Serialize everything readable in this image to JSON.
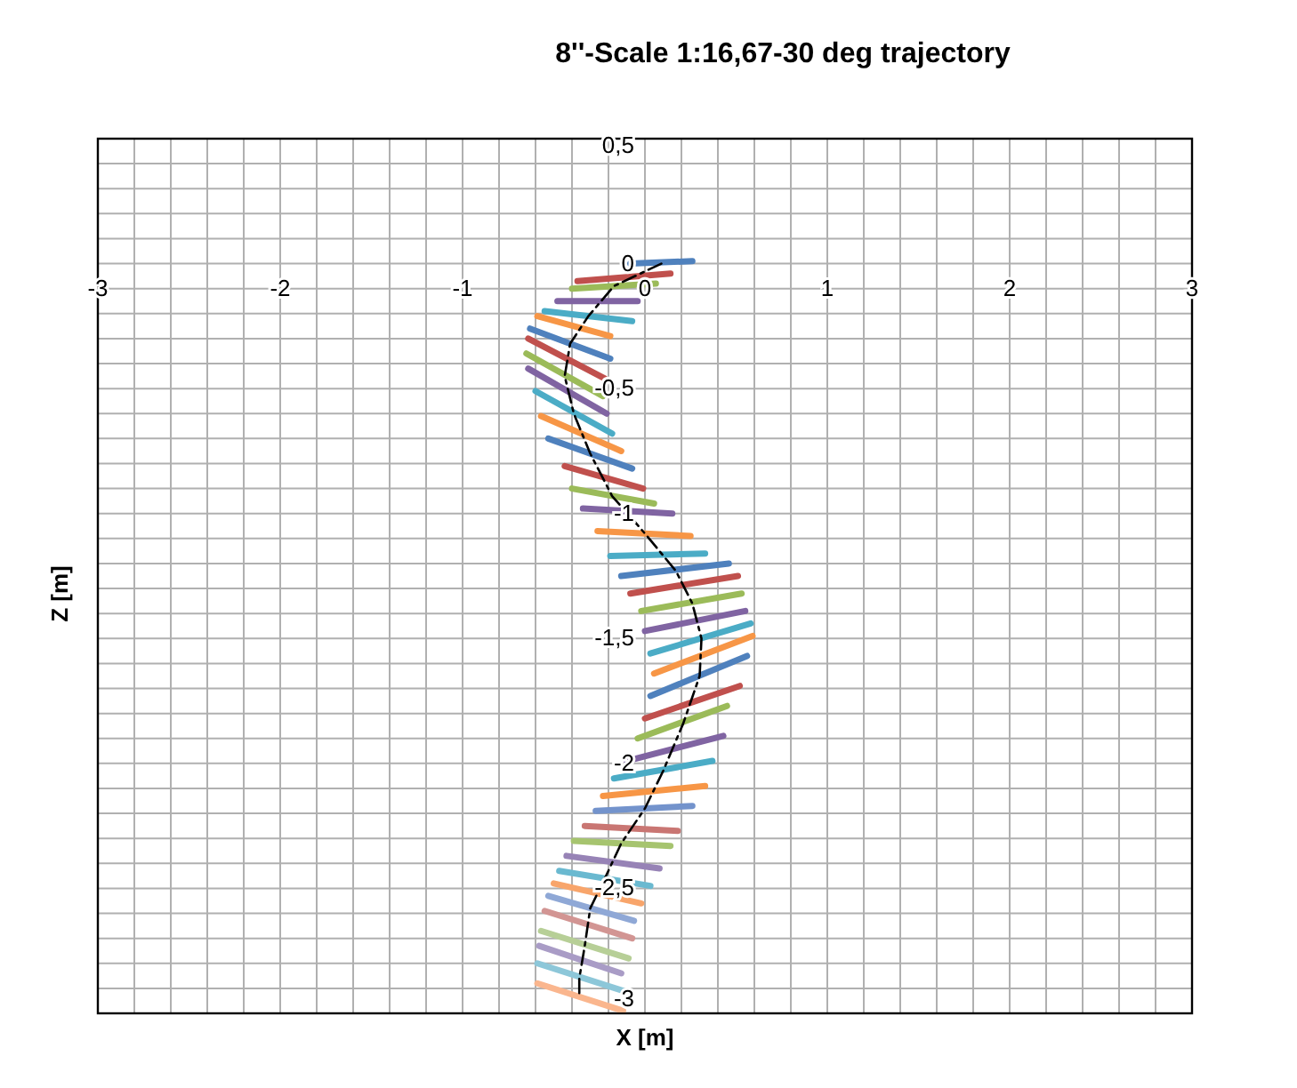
{
  "chart_data": {
    "type": "line",
    "title": "8''-Scale 1:16,67-30 deg trajectory",
    "xlabel": "X [m]",
    "ylabel": "Z [m]",
    "grid": true,
    "xlim": [
      -3,
      3
    ],
    "ylim": [
      -3,
      0.5
    ],
    "xticks": [
      -3,
      {
        "value": -2.8,
        "label": null
      },
      {
        "value": -2.6,
        "label": null
      },
      {
        "value": -2.4,
        "label": null
      },
      {
        "value": -2.2,
        "label": null
      },
      -2,
      {
        "value": -1.8,
        "label": null
      },
      {
        "value": -1.6,
        "label": null
      },
      {
        "value": -1.4,
        "label": null
      },
      {
        "value": -1.2,
        "label": null
      },
      -1,
      {
        "value": -0.8,
        "label": null
      },
      {
        "value": -0.6,
        "label": null
      },
      {
        "value": -0.4,
        "label": null
      },
      {
        "value": -0.2,
        "label": null
      },
      0,
      {
        "value": 0.2,
        "label": null
      },
      {
        "value": 0.4,
        "label": null
      },
      {
        "value": 0.6,
        "label": null
      },
      {
        "value": 0.8,
        "label": null
      },
      1,
      {
        "value": 1.2,
        "label": null
      },
      {
        "value": 1.4,
        "label": null
      },
      {
        "value": 1.6,
        "label": null
      },
      {
        "value": 1.8,
        "label": null
      },
      2,
      {
        "value": 2.2,
        "label": null
      },
      {
        "value": 2.4,
        "label": null
      },
      {
        "value": 2.6,
        "label": null
      },
      {
        "value": 2.8,
        "label": null
      },
      3
    ],
    "yticks": [
      {
        "value": 0.5,
        "label": "0,5"
      },
      {
        "value": 0.4,
        "label": null
      },
      {
        "value": 0.3,
        "label": null
      },
      {
        "value": 0.2,
        "label": null
      },
      {
        "value": 0.1,
        "label": null
      },
      0,
      {
        "value": -0.1,
        "label": null
      },
      {
        "value": -0.2,
        "label": null
      },
      {
        "value": -0.3,
        "label": null
      },
      {
        "value": -0.4,
        "label": null
      },
      {
        "value": -0.5,
        "label": "-0,5"
      },
      {
        "value": -0.6,
        "label": null
      },
      {
        "value": -0.7,
        "label": null
      },
      {
        "value": -0.8,
        "label": null
      },
      {
        "value": -0.9,
        "label": null
      },
      -1,
      {
        "value": -1.1,
        "label": null
      },
      {
        "value": -1.2,
        "label": null
      },
      {
        "value": -1.3,
        "label": null
      },
      {
        "value": -1.4,
        "label": null
      },
      {
        "value": -1.5,
        "label": "-1,5"
      },
      {
        "value": -1.6,
        "label": null
      },
      {
        "value": -1.7,
        "label": null
      },
      {
        "value": -1.8,
        "label": null
      },
      {
        "value": -1.9,
        "label": null
      },
      -2,
      {
        "value": -2.1,
        "label": null
      },
      {
        "value": -2.2,
        "label": null
      },
      {
        "value": -2.3,
        "label": null
      },
      {
        "value": -2.4,
        "label": null
      },
      {
        "value": -2.5,
        "label": "-2,5"
      },
      {
        "value": -2.6,
        "label": null
      },
      {
        "value": -2.7,
        "label": null
      },
      {
        "value": -2.8,
        "label": null
      },
      {
        "value": -2.9,
        "label": null
      },
      -3
    ],
    "series": [
      {
        "color": "#4f81bd",
        "x": [
          -0.08,
          0.26
        ],
        "values": [
          0.0,
          0.01
        ]
      },
      {
        "color": "#c0504d",
        "x": [
          -0.37,
          0.14
        ],
        "values": [
          -0.07,
          -0.04
        ]
      },
      {
        "color": "#9bbb59",
        "x": [
          -0.4,
          0.06
        ],
        "values": [
          -0.1,
          -0.08
        ]
      },
      {
        "color": "#8064a2",
        "x": [
          -0.48,
          -0.04
        ],
        "values": [
          -0.15,
          -0.15
        ]
      },
      {
        "color": "#4bacc6",
        "x": [
          -0.55,
          -0.07
        ],
        "values": [
          -0.19,
          -0.23
        ]
      },
      {
        "color": "#f79646",
        "x": [
          -0.59,
          -0.19
        ],
        "values": [
          -0.21,
          -0.29
        ]
      },
      {
        "color": "#4f81bd",
        "x": [
          -0.63,
          -0.19
        ],
        "values": [
          -0.26,
          -0.38
        ]
      },
      {
        "color": "#c0504d",
        "x": [
          -0.64,
          -0.22
        ],
        "values": [
          -0.3,
          -0.46
        ]
      },
      {
        "color": "#9bbb59",
        "x": [
          -0.65,
          -0.23
        ],
        "values": [
          -0.36,
          -0.53
        ]
      },
      {
        "color": "#8064a2",
        "x": [
          -0.64,
          -0.21
        ],
        "values": [
          -0.42,
          -0.6
        ]
      },
      {
        "color": "#4bacc6",
        "x": [
          -0.6,
          -0.18
        ],
        "values": [
          -0.51,
          -0.68
        ]
      },
      {
        "color": "#f79646",
        "x": [
          -0.57,
          -0.13
        ],
        "values": [
          -0.61,
          -0.75
        ]
      },
      {
        "color": "#4f81bd",
        "x": [
          -0.53,
          -0.07
        ],
        "values": [
          -0.7,
          -0.82
        ]
      },
      {
        "color": "#c0504d",
        "x": [
          -0.44,
          -0.01
        ],
        "values": [
          -0.81,
          -0.9
        ]
      },
      {
        "color": "#9bbb59",
        "x": [
          -0.4,
          0.05
        ],
        "values": [
          -0.9,
          -0.96
        ]
      },
      {
        "color": "#8064a2",
        "x": [
          -0.34,
          0.15
        ],
        "values": [
          -0.98,
          -1.0
        ]
      },
      {
        "color": "#f79646",
        "x": [
          -0.26,
          0.25
        ],
        "values": [
          -1.07,
          -1.09
        ]
      },
      {
        "color": "#4bacc6",
        "x": [
          -0.19,
          0.33
        ],
        "values": [
          -1.17,
          -1.16
        ]
      },
      {
        "color": "#4f81bd",
        "x": [
          -0.13,
          0.46
        ],
        "values": [
          -1.25,
          -1.2
        ]
      },
      {
        "color": "#c0504d",
        "x": [
          -0.08,
          0.51
        ],
        "values": [
          -1.32,
          -1.25
        ]
      },
      {
        "color": "#9bbb59",
        "x": [
          -0.02,
          0.53
        ],
        "values": [
          -1.39,
          -1.32
        ]
      },
      {
        "color": "#8064a2",
        "x": [
          0.0,
          0.55
        ],
        "values": [
          -1.47,
          -1.39
        ]
      },
      {
        "color": "#4bacc6",
        "x": [
          0.03,
          0.58
        ],
        "values": [
          -1.56,
          -1.44
        ]
      },
      {
        "color": "#f79646",
        "x": [
          0.05,
          0.59
        ],
        "values": [
          -1.64,
          -1.49
        ]
      },
      {
        "color": "#4f81bd",
        "x": [
          0.03,
          0.56
        ],
        "values": [
          -1.73,
          -1.57
        ]
      },
      {
        "color": "#c0504d",
        "x": [
          0.0,
          0.52
        ],
        "values": [
          -1.82,
          -1.69
        ]
      },
      {
        "color": "#9bbb59",
        "x": [
          -0.04,
          0.45
        ],
        "values": [
          -1.9,
          -1.77
        ]
      },
      {
        "color": "#8064a2",
        "x": [
          -0.1,
          0.43
        ],
        "values": [
          -1.99,
          -1.89
        ]
      },
      {
        "color": "#4bacc6",
        "x": [
          -0.17,
          0.37
        ],
        "values": [
          -2.06,
          -1.99
        ]
      },
      {
        "color": "#f79646",
        "x": [
          -0.23,
          0.33
        ],
        "values": [
          -2.13,
          -2.09
        ]
      },
      {
        "color": "#7393cc",
        "x": [
          -0.27,
          0.26
        ],
        "values": [
          -2.19,
          -2.17
        ]
      },
      {
        "color": "#c97673",
        "x": [
          -0.33,
          0.18
        ],
        "values": [
          -2.25,
          -2.27
        ]
      },
      {
        "color": "#a6c46f",
        "x": [
          -0.39,
          0.14
        ],
        "values": [
          -2.31,
          -2.33
        ]
      },
      {
        "color": "#9783b6",
        "x": [
          -0.43,
          0.08
        ],
        "values": [
          -2.37,
          -2.42
        ]
      },
      {
        "color": "#6ab9d0",
        "x": [
          -0.47,
          0.03
        ],
        "values": [
          -2.43,
          -2.49
        ]
      },
      {
        "color": "#f8a56b",
        "x": [
          -0.5,
          -0.02
        ],
        "values": [
          -2.48,
          -2.56
        ]
      },
      {
        "color": "#8fa8d6",
        "x": [
          -0.53,
          -0.06
        ],
        "values": [
          -2.53,
          -2.63
        ]
      },
      {
        "color": "#d29593",
        "x": [
          -0.55,
          -0.07
        ],
        "values": [
          -2.59,
          -2.7
        ]
      },
      {
        "color": "#b7cf97",
        "x": [
          -0.57,
          -0.09
        ],
        "values": [
          -2.67,
          -2.78
        ]
      },
      {
        "color": "#a99cc6",
        "x": [
          -0.58,
          -0.13
        ],
        "values": [
          -2.73,
          -2.84
        ]
      },
      {
        "color": "#8dc7d9",
        "x": [
          -0.59,
          -0.12
        ],
        "values": [
          -2.8,
          -2.91
        ]
      },
      {
        "color": "#fab68e",
        "x": [
          -0.59,
          -0.12
        ],
        "values": [
          -2.88,
          -2.99
        ]
      },
      {
        "color": "#000000",
        "line_style": "dashed",
        "x": [
          0.09,
          -0.17,
          -0.31,
          -0.41,
          -0.44,
          -0.39,
          -0.3,
          -0.18,
          0.0,
          0.17,
          0.26,
          0.31,
          0.3,
          0.21,
          0.1,
          0.0,
          -0.13,
          -0.22,
          -0.3,
          -0.33,
          -0.36,
          -0.36
        ],
        "values": [
          0.0,
          -0.09,
          -0.21,
          -0.32,
          -0.45,
          -0.6,
          -0.76,
          -0.93,
          -1.08,
          -1.23,
          -1.36,
          -1.5,
          -1.65,
          -1.84,
          -2.03,
          -2.18,
          -2.32,
          -2.46,
          -2.58,
          -2.73,
          -2.86,
          -2.94
        ]
      }
    ]
  }
}
